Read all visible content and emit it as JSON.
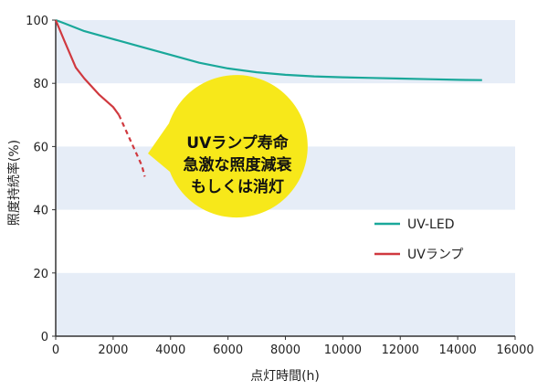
{
  "chart_data": {
    "type": "line",
    "title": "",
    "xlabel": "点灯時間(h)",
    "ylabel": "照度持続率(%)",
    "xlim": [
      0,
      16000
    ],
    "ylim": [
      0,
      100
    ],
    "x_ticks": [
      "0",
      "2000",
      "4000",
      "6000",
      "8000",
      "10000",
      "12000",
      "14000",
      "16000"
    ],
    "y_ticks": [
      "0",
      "20",
      "40",
      "60",
      "80",
      "100"
    ],
    "banded_background": true,
    "legend_position": "right-middle",
    "series": [
      {
        "name": "UV-LED",
        "color": "#1aa89a",
        "points": [
          [
            0,
            100
          ],
          [
            300,
            99
          ],
          [
            1000,
            96.5
          ],
          [
            2000,
            94
          ],
          [
            3000,
            91.5
          ],
          [
            4000,
            89
          ],
          [
            5000,
            86.5
          ],
          [
            6000,
            84.7
          ],
          [
            7000,
            83.5
          ],
          [
            8000,
            82.7
          ],
          [
            9000,
            82.2
          ],
          [
            10000,
            81.9
          ],
          [
            11000,
            81.7
          ],
          [
            12000,
            81.5
          ],
          [
            13000,
            81.3
          ],
          [
            14000,
            81.1
          ],
          [
            14850,
            81
          ]
        ]
      },
      {
        "name": "UVランプ",
        "color": "#d0393f",
        "points": [
          [
            0,
            100
          ],
          [
            300,
            93.5
          ],
          [
            700,
            85
          ],
          [
            1000,
            81.5
          ],
          [
            1500,
            76.5
          ],
          [
            2000,
            72.5
          ],
          [
            2200,
            70
          ]
        ],
        "projected_points": [
          [
            2200,
            70
          ],
          [
            2600,
            62
          ],
          [
            3000,
            54
          ],
          [
            3100,
            50.5
          ]
        ]
      }
    ],
    "annotation": {
      "lines": [
        "UVランプ寿命",
        "急激な照度減衰",
        "もしくは消灯"
      ],
      "fill": "#f7e81a"
    }
  }
}
